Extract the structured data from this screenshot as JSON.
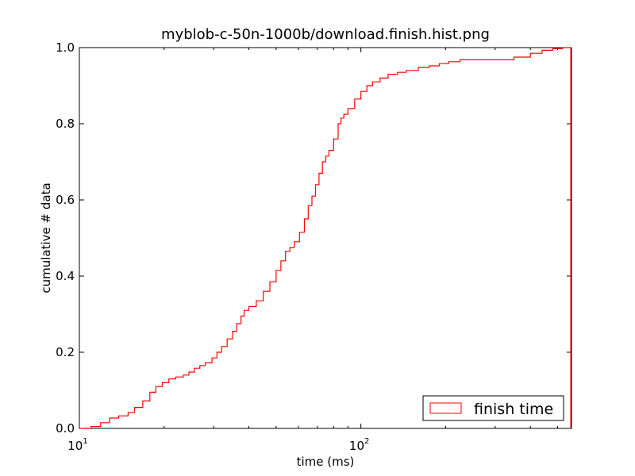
{
  "chart_data": {
    "type": "line",
    "title": "myblob-c-50n-1000b/download.finish.hist.png",
    "xlabel": "time (ms)",
    "ylabel": "cumulative # data",
    "xscale": "log",
    "xlim": [
      10,
      560
    ],
    "ylim": [
      0,
      1.0
    ],
    "grid": false,
    "legend_placement": "bottom-right",
    "x_ticks": [
      {
        "value": 10,
        "base": "10",
        "exp": "1"
      },
      {
        "value": 100,
        "base": "10",
        "exp": "2"
      }
    ],
    "y_ticks": [
      "0.0",
      "0.2",
      "0.4",
      "0.6",
      "0.8",
      "1.0"
    ],
    "colors": {
      "series": "#ff0000",
      "axes": "#000000",
      "background": "#ffffff"
    },
    "series": [
      {
        "name": "finish time",
        "step": true,
        "x": [
          10,
          11.0,
          11.9,
          12.8,
          13.8,
          14.9,
          15.7,
          16.8,
          17.8,
          18.7,
          19.7,
          20.8,
          22.0,
          23.4,
          24.5,
          25.6,
          26.8,
          28.0,
          29.6,
          30.8,
          32.0,
          33.5,
          35.0,
          36.2,
          37.5,
          38.5,
          40.0,
          42.5,
          45.0,
          47.5,
          50.0,
          52.0,
          54.0,
          56.0,
          58.0,
          60.5,
          63.0,
          65.0,
          67.0,
          69.0,
          71.0,
          73.0,
          75.0,
          77.0,
          80.0,
          83.0,
          85.0,
          87.0,
          90.0,
          95.0,
          100.0,
          105.0,
          110.0,
          117.0,
          125.0,
          135.0,
          145.0,
          160.0,
          175.0,
          190.0,
          205.0,
          225.0,
          250.0,
          300.0,
          350.0,
          400.0,
          440.0,
          480.0,
          520.0,
          555.0
        ],
        "y": [
          0.0,
          0.005,
          0.015,
          0.027,
          0.033,
          0.042,
          0.055,
          0.072,
          0.095,
          0.11,
          0.12,
          0.13,
          0.135,
          0.14,
          0.148,
          0.158,
          0.165,
          0.172,
          0.185,
          0.2,
          0.215,
          0.235,
          0.255,
          0.275,
          0.295,
          0.31,
          0.32,
          0.335,
          0.36,
          0.385,
          0.415,
          0.44,
          0.465,
          0.475,
          0.49,
          0.515,
          0.55,
          0.585,
          0.61,
          0.64,
          0.67,
          0.7,
          0.715,
          0.73,
          0.76,
          0.8,
          0.815,
          0.825,
          0.84,
          0.865,
          0.885,
          0.9,
          0.91,
          0.92,
          0.93,
          0.935,
          0.94,
          0.948,
          0.952,
          0.958,
          0.963,
          0.968,
          0.968,
          0.968,
          0.975,
          0.985,
          0.993,
          0.997,
          1.0,
          1.0
        ]
      }
    ]
  }
}
